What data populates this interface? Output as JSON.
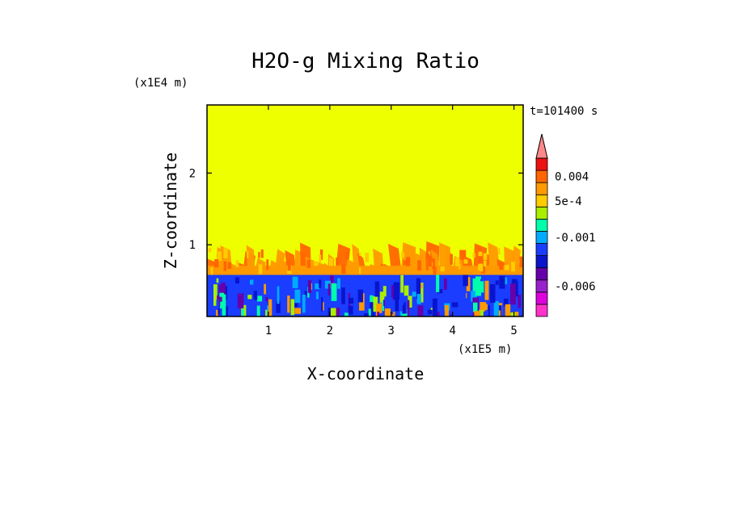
{
  "chart_data": {
    "type": "heatmap",
    "title": "H2O-g Mixing Ratio",
    "xlabel": "X-coordinate",
    "ylabel": "Z-coordinate",
    "x_unit": "(x1E5 m)",
    "y_unit": "(x1E4 m)",
    "time_label": "t=101400 s",
    "xlim": [
      0,
      5.15
    ],
    "ylim": [
      0,
      2.95
    ],
    "x_ticks": [
      1,
      2,
      3,
      4,
      5
    ],
    "y_ticks": [
      1,
      2
    ],
    "grid": false,
    "legend": "colorbar-right",
    "colorbar": {
      "levels": [
        {
          "color": "#ff33cc"
        },
        {
          "color": "#dd00dd"
        },
        {
          "color": "#9922cc"
        },
        {
          "color": "#6600aa"
        },
        {
          "color": "#0a14cc"
        },
        {
          "color": "#1a3dff"
        },
        {
          "color": "#00aaff"
        },
        {
          "color": "#00ffaa"
        },
        {
          "color": "#aaee00"
        },
        {
          "color": "#ffcc00"
        },
        {
          "color": "#ff9900"
        },
        {
          "color": "#ff6600"
        },
        {
          "color": "#ee1111"
        },
        {
          "color": "#ff8888"
        }
      ],
      "tick_labels": [
        {
          "text": "0.004",
          "level_index": 11
        },
        {
          "text": "5e-4",
          "level_index": 9
        },
        {
          "text": "-0.001",
          "level_index": 6
        },
        {
          "text": "-0.006",
          "level_index": 2
        }
      ]
    },
    "field_regions": [
      {
        "name": "background",
        "color": "#eeff00",
        "z_range": [
          0.95,
          2.95
        ]
      },
      {
        "name": "orange-plumes",
        "color": "#ff9900",
        "z_range": [
          0.55,
          1.05
        ]
      },
      {
        "name": "blue-layer",
        "color": "#1a3dff",
        "z_range": [
          0.0,
          0.58
        ]
      }
    ]
  }
}
